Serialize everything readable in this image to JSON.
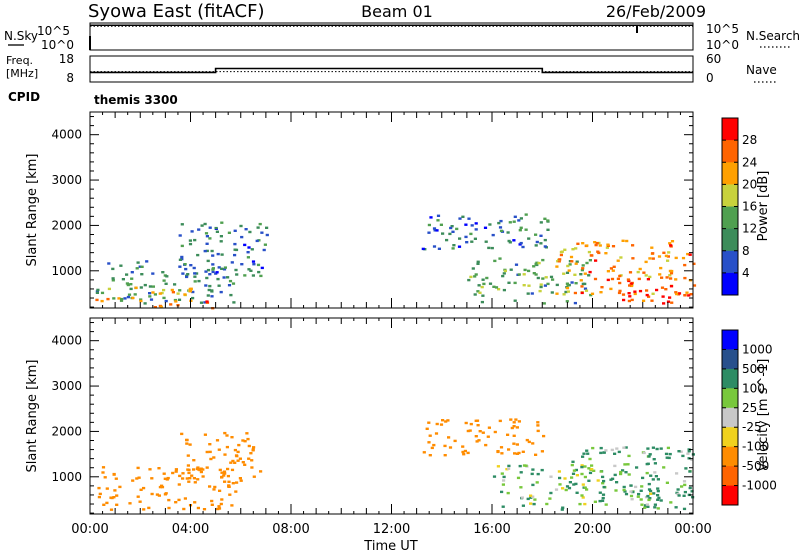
{
  "header": {
    "title": "Syowa East (fitACF)",
    "beam": "Beam 01",
    "date": "26/Feb/2009"
  },
  "noise_panel": {
    "left_label_top": "N.Sky",
    "left_label_bottom": "",
    "right_label": "N.Search",
    "tick_top": "10^5",
    "tick_bottom": "10^0",
    "right_tick_top": "10^5",
    "right_tick_bottom": "10^0"
  },
  "freq_panel": {
    "left_label_top": "Freq.",
    "left_label_unit": "[MHz]",
    "right_label": "Nave",
    "left_ticks": [
      "18",
      "8"
    ],
    "right_ticks": [
      "60",
      "0"
    ]
  },
  "cpid": {
    "label": "CPID",
    "value": "themis 3300"
  },
  "chart_data": [
    {
      "type": "line",
      "panel": "noise",
      "x": [
        "00:00",
        "04:00",
        "08:00",
        "12:00",
        "16:00",
        "20:00",
        "00:00"
      ],
      "series": [
        {
          "name": "N.Sky",
          "style": "solid",
          "values_log10": [
            4.6,
            4.6,
            4.6,
            4.6,
            4.6,
            4.6,
            4.6
          ]
        },
        {
          "name": "N.Search",
          "style": "dotted",
          "values_log10": [
            4.4,
            4.4,
            4.4,
            4.4,
            4.4,
            4.4,
            4.4
          ]
        }
      ],
      "ylim_log10": [
        0,
        5
      ]
    },
    {
      "type": "line",
      "panel": "frequency",
      "series": [
        {
          "name": "Freq.",
          "style": "solid",
          "unit": "MHz",
          "x_hours": [
            0,
            5,
            5,
            18,
            18,
            24
          ],
          "values": [
            11.7,
            11.7,
            13.2,
            13.2,
            11.7,
            11.7
          ]
        },
        {
          "name": "Nave",
          "style": "dotted",
          "x_hours": [
            0,
            24
          ],
          "values": [
            24,
            24
          ]
        }
      ],
      "ylim": [
        8,
        18
      ],
      "ylim_right": [
        0,
        60
      ]
    },
    {
      "type": "heatmap",
      "panel": "power",
      "ylabel": "Slant Range [km]",
      "yticks": [
        "1000",
        "2000",
        "3000",
        "4000"
      ],
      "ylim": [
        180,
        4500
      ],
      "colorbar": {
        "label": "Power [dB]",
        "ticks": [
          "4",
          "8",
          "12",
          "16",
          "20",
          "24",
          "28"
        ],
        "range": [
          0,
          30
        ],
        "colors": [
          "#0000ff",
          "#2850c8",
          "#3c8c5a",
          "#50a050",
          "#c8d23c",
          "#ffa000",
          "#ff6400",
          "#ff0000"
        ]
      },
      "regions": [
        {
          "t": [
            0.2,
            5.8
          ],
          "r": [
            300,
            1250
          ],
          "db": 9
        },
        {
          "t": [
            0.2,
            4.0
          ],
          "r": [
            350,
            700
          ],
          "db": 18
        },
        {
          "t": [
            2.5,
            5.5
          ],
          "r": [
            200,
            380
          ],
          "db": 26
        },
        {
          "t": [
            3.5,
            7.0
          ],
          "r": [
            900,
            2100
          ],
          "db": 8
        },
        {
          "t": [
            13.2,
            18.5
          ],
          "r": [
            1500,
            2300
          ],
          "db": 8
        },
        {
          "t": [
            15.0,
            20.0
          ],
          "r": [
            300,
            1300
          ],
          "db": 12
        },
        {
          "t": [
            18.5,
            24.0
          ],
          "r": [
            500,
            1700
          ],
          "db": 22
        },
        {
          "t": [
            21.0,
            24.0
          ],
          "r": [
            300,
            900
          ],
          "db": 27
        }
      ]
    },
    {
      "type": "heatmap",
      "panel": "velocity",
      "ylabel": "Slant Range [km]",
      "yticks": [
        "1000",
        "2000",
        "3000",
        "4000"
      ],
      "ylim": [
        180,
        4500
      ],
      "xlabel": "Time UT",
      "xticks": [
        "00:00",
        "04:00",
        "08:00",
        "12:00",
        "16:00",
        "20:00",
        "00:00"
      ],
      "xlim_hours": [
        0,
        24
      ],
      "colorbar": {
        "label": "Velocity [m s^-1]",
        "ticks": [
          "1000",
          "500",
          "100",
          "25",
          "-25",
          "-100",
          "-500",
          "-1000"
        ],
        "colors": [
          "#0000ff",
          "#28508c",
          "#2d8c64",
          "#78c83c",
          "#c8c8c8",
          "#f0d21e",
          "#ff8c00",
          "#ff6400",
          "#ff0000"
        ]
      },
      "regions": [
        {
          "t": [
            0.2,
            5.8
          ],
          "r": [
            300,
            1250
          ],
          "v": -300
        },
        {
          "t": [
            3.5,
            6.8
          ],
          "r": [
            900,
            2000
          ],
          "v": -250
        },
        {
          "t": [
            13.2,
            18.0
          ],
          "r": [
            1500,
            2300
          ],
          "v": -350
        },
        {
          "t": [
            16.0,
            20.5
          ],
          "r": [
            300,
            1300
          ],
          "v": 80
        },
        {
          "t": [
            19.0,
            24.0
          ],
          "r": [
            500,
            1700
          ],
          "v": 150
        },
        {
          "t": [
            21.0,
            24.0
          ],
          "r": [
            300,
            900
          ],
          "v": 120
        }
      ]
    }
  ]
}
